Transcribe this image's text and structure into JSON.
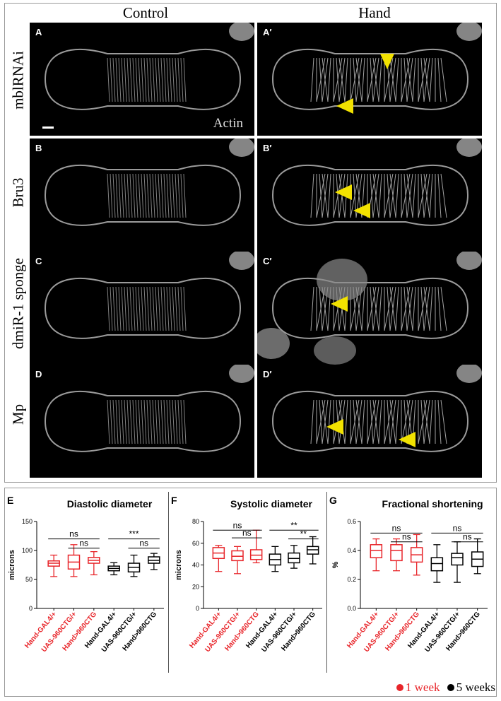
{
  "figure": {
    "column_headers": [
      "Control",
      "Hand"
    ],
    "row_labels": [
      "mblRNAi",
      "Bru3",
      "dmiR-1 sponge",
      "Mp"
    ],
    "panel_letters": {
      "left": [
        "A",
        "B",
        "C",
        "D"
      ],
      "right": [
        "A′",
        "B′",
        "C′",
        "D′"
      ]
    },
    "stain_label": "Actin",
    "arrowhead_color": "#f2e200"
  },
  "colors": {
    "week1": "#e8252a",
    "week5": "#000000"
  },
  "legend": {
    "week1": "1 week",
    "week5": "5 weeks"
  },
  "chart_data": [
    {
      "type": "box",
      "panel": "E",
      "title": "Diastolic diameter",
      "ylabel": "microns",
      "ylim": [
        0,
        150
      ],
      "yticks": [
        "0",
        "50",
        "100",
        "150"
      ],
      "categories": [
        "Hand-GAL4/+",
        "UAS-960CTG/+",
        "Hand>960CTG",
        "Hand-GAL4/+",
        "UAS-960CTG/+",
        "Hand>960CTG"
      ],
      "series": [
        {
          "name": "1 week",
          "boxes": [
            {
              "min": 55,
              "q1": 73,
              "median": 78,
              "q3": 82,
              "max": 92
            },
            {
              "min": 55,
              "q1": 68,
              "median": 80,
              "q3": 92,
              "max": 110
            },
            {
              "min": 58,
              "q1": 78,
              "median": 83,
              "q3": 88,
              "max": 98
            }
          ]
        },
        {
          "name": "5 weeks",
          "boxes": [
            {
              "min": 58,
              "q1": 65,
              "median": 69,
              "q3": 73,
              "max": 79
            },
            {
              "min": 55,
              "q1": 63,
              "median": 71,
              "q3": 78,
              "max": 92
            },
            {
              "min": 67,
              "q1": 78,
              "median": 83,
              "q3": 89,
              "max": 95
            }
          ]
        }
      ],
      "annotations": [
        {
          "text": "ns",
          "from": 0,
          "to": 2,
          "y": 120
        },
        {
          "text": "ns",
          "from": 1,
          "to": 2,
          "y": 104
        },
        {
          "text": "***",
          "from": 3,
          "to": 5,
          "y": 120
        },
        {
          "text": "ns",
          "from": 4,
          "to": 5,
          "y": 104
        }
      ]
    },
    {
      "type": "box",
      "panel": "F",
      "title": "Systolic diameter",
      "ylabel": "microns",
      "ylim": [
        0,
        80
      ],
      "yticks": [
        "0",
        "20",
        "40",
        "60",
        "80"
      ],
      "categories": [
        "Hand-GAL4/+",
        "UAS-960CTG/+",
        "Hand>960CTG",
        "Hand-GAL4/+",
        "UAS-960CTG/+",
        "Hand>960CTG"
      ],
      "series": [
        {
          "name": "1 week",
          "boxes": [
            {
              "min": 34,
              "q1": 46,
              "median": 51,
              "q3": 56,
              "max": 58
            },
            {
              "min": 32,
              "q1": 44,
              "median": 48,
              "q3": 53,
              "max": 57
            },
            {
              "min": 42,
              "q1": 45,
              "median": 49,
              "q3": 54,
              "max": 72
            }
          ]
        },
        {
          "name": "5 weeks",
          "boxes": [
            {
              "min": 34,
              "q1": 40,
              "median": 45,
              "q3": 50,
              "max": 57
            },
            {
              "min": 37,
              "q1": 42,
              "median": 46,
              "q3": 51,
              "max": 58
            },
            {
              "min": 41,
              "q1": 50,
              "median": 54,
              "q3": 57,
              "max": 66
            }
          ]
        }
      ],
      "annotations": [
        {
          "text": "ns",
          "from": 0,
          "to": 2,
          "y": 72
        },
        {
          "text": "ns",
          "from": 1,
          "to": 2,
          "y": 65
        },
        {
          "text": "**",
          "from": 3,
          "to": 5,
          "y": 72
        },
        {
          "text": "**",
          "from": 4,
          "to": 5,
          "y": 64
        }
      ]
    },
    {
      "type": "box",
      "panel": "G",
      "title": "Fractional shortening",
      "ylabel": "%",
      "ylim": [
        0,
        0.6
      ],
      "yticks": [
        "0.0",
        "0.2",
        "0.4",
        "0.6"
      ],
      "categories": [
        "Hand-GAL4/+",
        "UAS-960CTG/+",
        "Hand>960CTG",
        "Hand-GAL4/+",
        "UAS-960CTG/+",
        "Hand>960CTG"
      ],
      "series": [
        {
          "name": "1 week",
          "boxes": [
            {
              "min": 0.26,
              "q1": 0.35,
              "median": 0.4,
              "q3": 0.44,
              "max": 0.48
            },
            {
              "min": 0.26,
              "q1": 0.33,
              "median": 0.4,
              "q3": 0.44,
              "max": 0.48
            },
            {
              "min": 0.23,
              "q1": 0.32,
              "median": 0.37,
              "q3": 0.42,
              "max": 0.51
            }
          ]
        },
        {
          "name": "5 weeks",
          "boxes": [
            {
              "min": 0.18,
              "q1": 0.26,
              "median": 0.31,
              "q3": 0.35,
              "max": 0.44
            },
            {
              "min": 0.18,
              "q1": 0.3,
              "median": 0.35,
              "q3": 0.38,
              "max": 0.46
            },
            {
              "min": 0.24,
              "q1": 0.29,
              "median": 0.34,
              "q3": 0.39,
              "max": 0.48
            }
          ]
        }
      ],
      "annotations": [
        {
          "text": "ns",
          "from": 0,
          "to": 2,
          "y": 0.52
        },
        {
          "text": "ns",
          "from": 1,
          "to": 2,
          "y": 0.46
        },
        {
          "text": "ns",
          "from": 3,
          "to": 5,
          "y": 0.52
        },
        {
          "text": "ns",
          "from": 4,
          "to": 5,
          "y": 0.46
        }
      ]
    }
  ]
}
